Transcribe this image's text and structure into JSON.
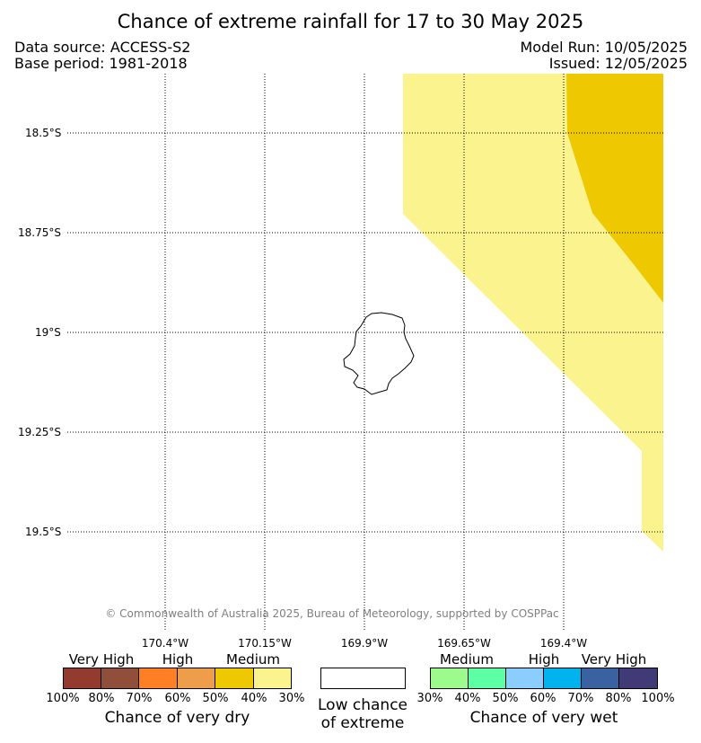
{
  "title": "Chance of extreme rainfall for 17 to 30 May 2025",
  "header": {
    "data_source": "Data source: ACCESS-S2",
    "base_period": "Base period: 1981-2018",
    "model_run": "Model Run: 10/05/2025",
    "issued": "Issued: 12/05/2025"
  },
  "map": {
    "lat_labels": [
      "18.5°S",
      "18.75°S",
      "19°S",
      "19.25°S",
      "19.5°S"
    ],
    "lon_labels": [
      "170.4°W",
      "170.15°W",
      "169.9°W",
      "169.65°W",
      "169.4°W"
    ],
    "regions": [
      {
        "category": "very dry 30-40%",
        "color": "#fbf38e"
      },
      {
        "category": "very dry 40-50%",
        "color": "#eec800"
      }
    ],
    "credit": "© Commonwealth of Australia 2025, Bureau of Meteorology, supported by COSPPac"
  },
  "legend": {
    "dry": {
      "categories": [
        "Very High",
        "High",
        "Medium"
      ],
      "ticks": [
        "100%",
        "80%",
        "70%",
        "60%",
        "50%",
        "40%",
        "30%"
      ],
      "colors": [
        "#943b30",
        "#8f4f3b",
        "#ff7f24",
        "#ee9d4b",
        "#eec800",
        "#fbf38e"
      ],
      "caption": "Chance of very dry"
    },
    "neutral": {
      "caption_line1": "Low chance",
      "caption_line2": "of extreme",
      "color": "#ffffff"
    },
    "wet": {
      "categories": [
        "Medium",
        "High",
        "Very High"
      ],
      "ticks": [
        "30%",
        "40%",
        "50%",
        "60%",
        "70%",
        "80%",
        "100%"
      ],
      "colors": [
        "#9dfb8e",
        "#5cffa3",
        "#8bcdfe",
        "#00b2ee",
        "#3b62a0",
        "#403b77"
      ],
      "caption": "Chance of very wet"
    }
  }
}
